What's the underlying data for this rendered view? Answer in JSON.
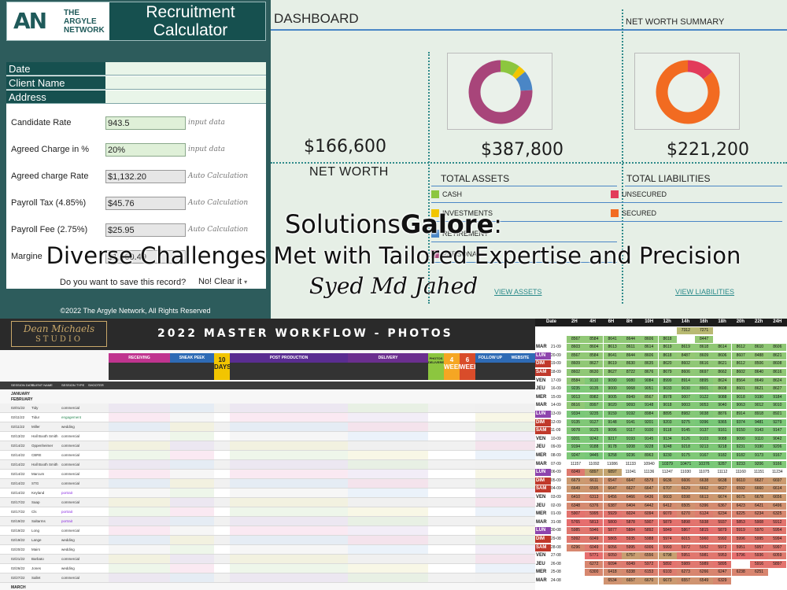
{
  "calculator": {
    "logo_mark": "AN",
    "logo_text": [
      "THE",
      "ARGYLE",
      "NETWORK"
    ],
    "title_line1": "Recruitment",
    "title_line2": "Calculator",
    "info_fields": [
      "Date",
      "Client Name",
      "Address"
    ],
    "rows": [
      {
        "label": "Candidate Rate",
        "value": "943.5",
        "note": "input data",
        "auto": false
      },
      {
        "label": "Agreed Charge in %",
        "value": "20%",
        "note": "input data",
        "auto": false
      },
      {
        "label": "Agreed charge Rate",
        "value": "$1,132.20",
        "note": "Auto Calculation",
        "auto": true
      },
      {
        "label": "Payroll Tax (4.85%)",
        "value": "$45.76",
        "note": "Auto Calculation",
        "auto": true
      },
      {
        "label": "Payroll Fee (2.75%)",
        "value": "$25.95",
        "note": "Auto Calculation",
        "auto": true
      },
      {
        "label": "Margine",
        "value": "$1,060.49",
        "note": "",
        "auto": true
      }
    ],
    "save_question": "Do you want to save this record?",
    "clear_option": "No! Clear it",
    "copyright": "©2022 The Argyle Network, All Rights Reserved"
  },
  "dashboard": {
    "title": "DASHBOARD",
    "summary_title": "NET WORTH SUMMARY",
    "net_worth_amount": "$166,600",
    "net_worth_label": "NET WORTH",
    "total_assets_amount": "$387,800",
    "total_liabilities_amount": "$221,200",
    "total_assets_label": "TOTAL ASSETS",
    "total_liabilities_label": "TOTAL LIABILITIES",
    "assets_legend": [
      {
        "label": "CASH",
        "color": "#8cc63f"
      },
      {
        "label": "INVESTMENTS",
        "color": "#f2c500"
      },
      {
        "label": "RETIREMENT",
        "color": "#4a86c6"
      },
      {
        "label": "PERSONAL",
        "color": "#a8457a"
      }
    ],
    "liabilities_legend": [
      {
        "label": "UNSECURED",
        "color": "#e23b5a"
      },
      {
        "label": "SECURED",
        "color": "#f26b21"
      }
    ],
    "assets_donut": [
      {
        "label": "CASH",
        "fraction": 0.1,
        "color": "#8cc63f"
      },
      {
        "label": "INVESTMENTS",
        "fraction": 0.04,
        "color": "#f2c500"
      },
      {
        "label": "RETIREMENT",
        "fraction": 0.1,
        "color": "#4a86c6"
      },
      {
        "label": "PERSONAL",
        "fraction": 0.76,
        "color": "#a8457a"
      }
    ],
    "liabilities_donut": [
      {
        "label": "UNSECURED",
        "fraction": 0.14,
        "color": "#e23b5a"
      },
      {
        "label": "SECURED",
        "fraction": 0.86,
        "color": "#f26b21"
      }
    ],
    "view_assets": "VIEW ASSETS",
    "view_liabilities": "VIEW LIABILITIES"
  },
  "overlay": {
    "brand_regular": "Solutions",
    "brand_bold": "Galore",
    "brand_colon": ":",
    "tagline": "Diverse Challenges Met with Tailored Expertise and Precision",
    "author": "Syed Md Jahed"
  },
  "workflow": {
    "logo_line1": "Dean Michaels",
    "logo_line2": "STUDIO",
    "title": "2022 MASTER WORKFLOW - PHOTOS",
    "groups": [
      {
        "label": "RECEIVING",
        "color": "#c0348f"
      },
      {
        "label": "SNEAK PEEK",
        "color": "#2e6bb5"
      },
      {
        "label": "POST PRODUCTION",
        "color": "#5a2d91"
      },
      {
        "label": "DELIVERY",
        "color": "#6b2f8f"
      },
      {
        "label": "FOLLOW UP",
        "color": "#2e6bb5"
      },
      {
        "label": "WEBSITE",
        "color": "#2e6bb5"
      }
    ],
    "days_label": "10 DAYS",
    "weeks_label": "4 WEEKS",
    "weeks6_label": "6 WEEKS",
    "photos_delivered": "PHOTOS DELIVERED",
    "columns": [
      "SESSION DATE",
      "CLIENT NAME",
      "SESSION TYPE",
      "SHOOTER"
    ],
    "months": [
      "JANUARY",
      "FEBRUARY",
      "MARCH"
    ],
    "rows": [
      {
        "date": "02/01/22",
        "name": "Tidy",
        "type": "commercial"
      },
      {
        "date": "02/11/22",
        "name": "Tidur",
        "type": "engagement"
      },
      {
        "date": "02/11/22",
        "name": "Miller",
        "type": "wedding"
      },
      {
        "date": "02/13/22",
        "name": "Hall Booth Smith",
        "type": "commercial"
      },
      {
        "date": "02/14/22",
        "name": "Oppenheimer",
        "type": "commercial"
      },
      {
        "date": "02/14/22",
        "name": "CBRE",
        "type": "commercial"
      },
      {
        "date": "02/14/22",
        "name": "Hall Booth Smith",
        "type": "commercial"
      },
      {
        "date": "02/14/22",
        "name": "Marcum",
        "type": "commercial"
      },
      {
        "date": "02/14/22",
        "name": "STG",
        "type": "commercial"
      },
      {
        "date": "02/14/22",
        "name": "Keyland",
        "type": "portrait"
      },
      {
        "date": "02/17/22",
        "name": "Saap",
        "type": "commercial"
      },
      {
        "date": "02/17/22",
        "name": "Cls",
        "type": "portrait"
      },
      {
        "date": "02/19/22",
        "name": "Saltarms",
        "type": "portrait"
      },
      {
        "date": "02/19/22",
        "name": "Long",
        "type": "commercial"
      },
      {
        "date": "02/19/22",
        "name": "Lange",
        "type": "wedding"
      },
      {
        "date": "02/20/22",
        "name": "Mairs",
        "type": "wedding"
      },
      {
        "date": "02/21/22",
        "name": "Barbato",
        "type": "commercial"
      },
      {
        "date": "02/26/22",
        "name": "Jones",
        "type": "wedding"
      },
      {
        "date": "02/27/22",
        "name": "Sallet",
        "type": "commercial"
      }
    ]
  },
  "grid": {
    "header": [
      "Date",
      "2H",
      "4H",
      "6H",
      "8H",
      "10H",
      "12h",
      "14h",
      "16h",
      "18h",
      "20h",
      "22h",
      "24H"
    ],
    "rows": [
      {
        "day": "",
        "date": "",
        "values": [
          "",
          "",
          "",
          "",
          "",
          "",
          "7312",
          "7271",
          "",
          "",
          "",
          ""
        ]
      },
      {
        "day": "",
        "date": "",
        "values": [
          "8567",
          "8584",
          "8641",
          "8644",
          "8606",
          "8618",
          "",
          "8447",
          "",
          "",
          "",
          ""
        ]
      },
      {
        "day": "MAR",
        "date": "21-09",
        "values": [
          "8603",
          "8604",
          "8613",
          "8611",
          "8614",
          "8619",
          "8619",
          "8618",
          "8614",
          "8612",
          "8610",
          "8606"
        ]
      },
      {
        "day": "LUN",
        "date": "20-09",
        "values": [
          "8567",
          "8584",
          "8641",
          "8644",
          "8606",
          "8618",
          "8487",
          "8609",
          "8606",
          "8607",
          "8488",
          "8621"
        ]
      },
      {
        "day": "DIM",
        "date": "19-09",
        "values": [
          "8609",
          "8627",
          "8619",
          "8630",
          "8635",
          "8620",
          "8602",
          "8616",
          "8621",
          "8612",
          "8506",
          "8608"
        ]
      },
      {
        "day": "SAM",
        "date": "18-09",
        "values": [
          "8602",
          "8630",
          "8627",
          "8722",
          "8676",
          "8679",
          "8606",
          "8697",
          "8662",
          "8602",
          "8640",
          "8616"
        ]
      },
      {
        "day": "VEN",
        "date": "17-09",
        "values": [
          "8584",
          "9110",
          "9090",
          "9080",
          "9084",
          "8999",
          "8914",
          "8895",
          "8624",
          "8564",
          "8649",
          "8624"
        ]
      },
      {
        "day": "JEU",
        "date": "16-09",
        "values": [
          "9235",
          "9135",
          "9000",
          "9068",
          "9051",
          "9033",
          "9030",
          "8901",
          "8608",
          "8601",
          "8621",
          "8627"
        ]
      },
      {
        "day": "MER",
        "date": "15-09",
        "values": [
          "9013",
          "8982",
          "9005",
          "8949",
          "8567",
          "8978",
          "9007",
          "9122",
          "9088",
          "9018",
          "9190",
          "9184"
        ]
      },
      {
        "day": "MAR",
        "date": "14-09",
        "values": [
          "8616",
          "8997",
          "9020",
          "9093",
          "9148",
          "9018",
          "9003",
          "9053",
          "9040",
          "9063",
          "9012",
          "9010"
        ]
      },
      {
        "day": "LUN",
        "date": "13-09",
        "values": [
          "9334",
          "9235",
          "9159",
          "9192",
          "8984",
          "8895",
          "8982",
          "9038",
          "8876",
          "8914",
          "8918",
          "8921"
        ]
      },
      {
        "day": "DIM",
        "date": "12-09",
        "values": [
          "9135",
          "9127",
          "9148",
          "9141",
          "9201",
          "9203",
          "9275",
          "9396",
          "9365",
          "9374",
          "9481",
          "9279"
        ]
      },
      {
        "day": "SAM",
        "date": "11-09",
        "values": [
          "9078",
          "9125",
          "9096",
          "9117",
          "9100",
          "9118",
          "9145",
          "9137",
          "9161",
          "9150",
          "9143",
          "9147"
        ]
      },
      {
        "day": "VEN",
        "date": "10-09",
        "values": [
          "9201",
          "9242",
          "9217",
          "9193",
          "9145",
          "9134",
          "9126",
          "9103",
          "9088",
          "9090",
          "9110",
          "9042"
        ]
      },
      {
        "day": "JEU",
        "date": "09-09",
        "values": [
          "9194",
          "9188",
          "9178",
          "9208",
          "9228",
          "9248",
          "9218",
          "9213",
          "9218",
          "9231",
          "9190",
          "9206"
        ]
      },
      {
        "day": "MER",
        "date": "08-09",
        "values": [
          "9247",
          "9445",
          "9258",
          "9236",
          "8963",
          "9230",
          "9175",
          "9167",
          "9182",
          "9182",
          "9173",
          "9167"
        ]
      },
      {
        "day": "MAR",
        "date": "07-09",
        "values": [
          "11157",
          "11092",
          "11086",
          "11133",
          "10940",
          "10379",
          "10471",
          "10376",
          "9287",
          "9233",
          "9206",
          "9166"
        ]
      },
      {
        "day": "LUN",
        "date": "06-09",
        "values": [
          "6049",
          "6897",
          "6897",
          "11041",
          "11136",
          "11247",
          "11030",
          "11075",
          "11112",
          "11160",
          "11151",
          "11234"
        ]
      },
      {
        "day": "DIM",
        "date": "05-09",
        "values": [
          "6679",
          "6611",
          "6547",
          "6647",
          "6579",
          "6636",
          "6606",
          "6638",
          "6638",
          "6610",
          "6627",
          "6697"
        ]
      },
      {
        "day": "SAM",
        "date": "04-09",
        "values": [
          "6649",
          "6595",
          "6647",
          "6627",
          "6647",
          "6707",
          "6629",
          "6662",
          "6627",
          "6592",
          "6660",
          "6614"
        ]
      },
      {
        "day": "VEN",
        "date": "03-09",
        "values": [
          "6410",
          "6313",
          "6456",
          "6466",
          "6436",
          "6603",
          "6598",
          "6613",
          "6674",
          "6675",
          "6678",
          "6656"
        ]
      },
      {
        "day": "JEU",
        "date": "02-09",
        "values": [
          "6348",
          "6376",
          "6387",
          "6404",
          "6442",
          "6412",
          "6505",
          "6396",
          "6367",
          "6423",
          "6421",
          "6496"
        ]
      },
      {
        "day": "MER",
        "date": "01-09",
        "values": [
          "5907",
          "5995",
          "5929",
          "6024",
          "6094",
          "6070",
          "6270",
          "6124",
          "6234",
          "6225",
          "6234",
          "6325"
        ]
      },
      {
        "day": "MAR",
        "date": "31-08",
        "values": [
          "5765",
          "5813",
          "5800",
          "5878",
          "5907",
          "5879",
          "5898",
          "5938",
          "5937",
          "5853",
          "5908",
          "5912"
        ]
      },
      {
        "day": "LUN",
        "date": "30-08",
        "values": [
          "5985",
          "5946",
          "5877",
          "5884",
          "5892",
          "5849",
          "5867",
          "5815",
          "5879",
          "5919",
          "5970",
          "5954"
        ]
      },
      {
        "day": "DIM",
        "date": "29-08",
        "values": [
          "5992",
          "6049",
          "5865",
          "5935",
          "5988",
          "5974",
          "6015",
          "5960",
          "5992",
          "5996",
          "5995",
          "5994"
        ]
      },
      {
        "day": "SAM",
        "date": "28-08",
        "values": [
          "6296",
          "6049",
          "6056",
          "5995",
          "6006",
          "5993",
          "5972",
          "5952",
          "5972",
          "5951",
          "5957",
          "5997"
        ]
      },
      {
        "day": "VEN",
        "date": "27-08",
        "values": [
          "",
          "5771",
          "6050",
          "6757",
          "6556",
          "6798",
          "5951",
          "5981",
          "5953",
          "5796",
          "5936",
          "6059"
        ]
      },
      {
        "day": "JEU",
        "date": "26-08",
        "values": [
          "",
          "6272",
          "6094",
          "6049",
          "5972",
          "5892",
          "5989",
          "5989",
          "5895",
          "",
          "5916",
          "5897"
        ]
      },
      {
        "day": "MER",
        "date": "25-08",
        "values": [
          "",
          "6300",
          "6418",
          "6338",
          "6153",
          "6103",
          "6273",
          "6266",
          "6247",
          "6238",
          "6251",
          ""
        ]
      },
      {
        "day": "MAR",
        "date": "24-08",
        "values": [
          "",
          "",
          "6534",
          "6657",
          "6670",
          "6673",
          "6557",
          "6549",
          "6329",
          "",
          "",
          ""
        ]
      }
    ]
  }
}
